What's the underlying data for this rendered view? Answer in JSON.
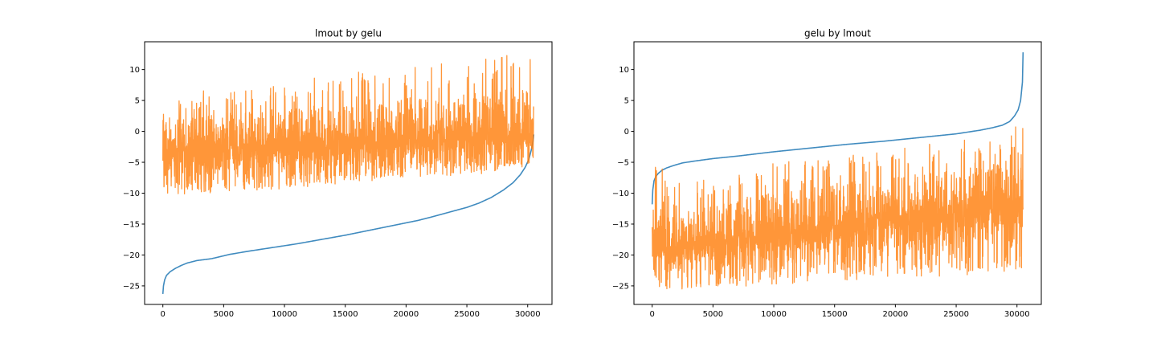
{
  "chart_data": [
    {
      "type": "line",
      "title": "lmout by gelu",
      "xlabel": "",
      "ylabel": "",
      "xlim": [
        -1500,
        32000
      ],
      "ylim": [
        -28,
        14.5
      ],
      "xticks": [
        0,
        5000,
        10000,
        15000,
        20000,
        25000,
        30000
      ],
      "yticks": [
        -25,
        -20,
        -15,
        -10,
        -5,
        0,
        5,
        10
      ],
      "grid": false,
      "legend": "none",
      "series": [
        {
          "color": "#1f77b4",
          "style": "smooth",
          "x": [
            0,
            50,
            150,
            300,
            600,
            1000,
            1500,
            2000,
            2800,
            4000,
            5500,
            7000,
            9000,
            11000,
            13000,
            15000,
            17000,
            19000,
            21000,
            22000,
            23500,
            25000,
            26000,
            27000,
            28000,
            28800,
            29400,
            29800,
            30100,
            30300,
            30450,
            30500
          ],
          "values": [
            -26.3,
            -25.0,
            -24.0,
            -23.3,
            -22.7,
            -22.2,
            -21.7,
            -21.3,
            -20.9,
            -20.6,
            -19.9,
            -19.4,
            -18.8,
            -18.2,
            -17.5,
            -16.8,
            -16.0,
            -15.2,
            -14.4,
            -13.9,
            -13.1,
            -12.3,
            -11.6,
            -10.7,
            -9.5,
            -8.3,
            -7.0,
            -5.8,
            -4.5,
            -3.0,
            -1.5,
            -0.5
          ]
        },
        {
          "color": "#ff7f0e",
          "style": "noise",
          "x": [
            0,
            2500,
            5000,
            7500,
            10000,
            12500,
            15000,
            17500,
            20000,
            22500,
            25000,
            27500,
            30000,
            30500
          ],
          "center": [
            -3.5,
            -3.3,
            -3.0,
            -2.8,
            -2.6,
            -2.4,
            -2.2,
            -1.9,
            -1.7,
            -1.5,
            -1.3,
            -1.1,
            -0.9,
            -0.8
          ],
          "lower": [
            -10.5,
            -10.2,
            -9.8,
            -9.5,
            -9.3,
            -9.0,
            -8.5,
            -8.0,
            -7.6,
            -7.3,
            -7.0,
            -6.7,
            -6.2,
            -6.0
          ],
          "upper": [
            6.0,
            6.5,
            7.0,
            7.5,
            8.0,
            9.0,
            9.5,
            10.0,
            10.5,
            11.0,
            11.5,
            12.5,
            12.8,
            12.0
          ],
          "n_points": 2400
        }
      ]
    },
    {
      "type": "line",
      "title": "gelu by lmout",
      "xlabel": "",
      "ylabel": "",
      "xlim": [
        -1500,
        32000
      ],
      "ylim": [
        -28,
        14.5
      ],
      "xticks": [
        0,
        5000,
        10000,
        15000,
        20000,
        25000,
        30000
      ],
      "yticks": [
        -25,
        -20,
        -15,
        -10,
        -5,
        0,
        5,
        10
      ],
      "grid": false,
      "legend": "none",
      "series": [
        {
          "color": "#1f77b4",
          "style": "smooth",
          "x": [
            0,
            50,
            150,
            300,
            500,
            800,
            1200,
            1800,
            2500,
            3500,
            5000,
            7000,
            10000,
            13000,
            16000,
            19000,
            22000,
            25000,
            27000,
            28000,
            28800,
            29400,
            29800,
            30100,
            30300,
            30450,
            30500
          ],
          "values": [
            -11.8,
            -9.5,
            -8.0,
            -7.3,
            -6.8,
            -6.3,
            -5.9,
            -5.5,
            -5.1,
            -4.8,
            -4.4,
            -4.0,
            -3.3,
            -2.7,
            -2.1,
            -1.6,
            -1.0,
            -0.4,
            0.2,
            0.6,
            1.0,
            1.6,
            2.5,
            3.5,
            5.0,
            8.0,
            12.8
          ]
        },
        {
          "color": "#ff7f0e",
          "style": "noise",
          "x": [
            0,
            2500,
            5000,
            7500,
            10000,
            12500,
            15000,
            17500,
            20000,
            22500,
            25000,
            27500,
            30000,
            30500
          ],
          "center": [
            -19.0,
            -18.6,
            -18.0,
            -17.5,
            -17.0,
            -16.5,
            -15.8,
            -15.2,
            -14.6,
            -14.0,
            -13.4,
            -12.9,
            -12.4,
            -12.2
          ],
          "lower": [
            -25.5,
            -25.5,
            -25.0,
            -25.2,
            -24.8,
            -24.5,
            -24.3,
            -24.0,
            -23.8,
            -23.5,
            -23.5,
            -23.0,
            -22.5,
            -22.5
          ],
          "upper": [
            -5.0,
            -8.0,
            -7.5,
            -6.0,
            -5.0,
            -4.5,
            -3.5,
            -3.0,
            -2.5,
            -2.0,
            -1.5,
            -0.5,
            1.0,
            0.5
          ],
          "n_points": 2400
        }
      ]
    }
  ]
}
